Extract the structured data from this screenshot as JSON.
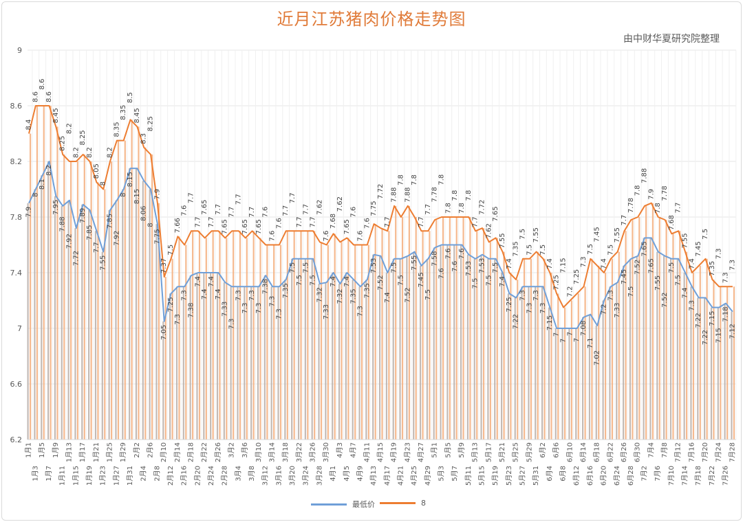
{
  "title": "近月江苏猪肉价格走势图",
  "subtitle": "由中财华夏研究院整理",
  "chart_data": {
    "type": "line",
    "title": "近月江苏猪肉价格走势图",
    "ylim": [
      6.2,
      9
    ],
    "yticks": [
      6.2,
      6.6,
      7,
      7.4,
      7.8,
      8.2,
      8.6,
      9
    ],
    "grid": true,
    "legend_position": "bottom",
    "categories": [
      "1月1",
      "1月3",
      "1月5",
      "1月7",
      "1月9",
      "1月11",
      "1月13",
      "1月15",
      "1月17",
      "1月19",
      "1月21",
      "1月23",
      "1月25",
      "1月27",
      "1月29",
      "1月31",
      "2月2",
      "2月4",
      "2月6",
      "2月8",
      "2月10",
      "2月12",
      "2月14",
      "2月16",
      "2月18",
      "2月20",
      "2月22",
      "2月24",
      "2月26",
      "2月28",
      "3月2",
      "3月4",
      "3月6",
      "3月8",
      "3月10",
      "3月12",
      "3月14",
      "3月16",
      "3月18",
      "3月20",
      "3月22",
      "3月24",
      "3月26",
      "3月28",
      "3月30",
      "4月1",
      "4月3",
      "4月5",
      "4月7",
      "4月9",
      "4月11",
      "4月13",
      "4月15",
      "4月17",
      "4月19",
      "4月21",
      "4月23",
      "4月25",
      "4月27",
      "4月29",
      "5月1",
      "5月3",
      "5月5",
      "5月7",
      "5月9",
      "5月11",
      "5月13",
      "5月15",
      "5月17",
      "5月19",
      "5月21",
      "5月23",
      "5月25",
      "5月27",
      "5月29",
      "5月31",
      "6月2",
      "6月4",
      "6月6",
      "6月8",
      "6月10",
      "6月12",
      "6月14",
      "6月16",
      "6月18",
      "6月20",
      "6月22",
      "6月24",
      "6月26",
      "6月28",
      "6月30",
      "7月2",
      "7月4",
      "7月6",
      "7月8",
      "7月10",
      "7月12",
      "7月14",
      "7月16",
      "7月18",
      "7月20",
      "7月22",
      "7月24",
      "7月26",
      "7月28"
    ],
    "series": [
      {
        "name": "最低价",
        "color": "#6f9fd8",
        "bar_color": "#bcb3ad",
        "values": [
          7.9,
          8.0,
          8.1,
          8.2,
          7.95,
          7.88,
          7.92,
          7.72,
          7.89,
          7.85,
          7.7,
          7.55,
          7.85,
          7.92,
          8.0,
          8.15,
          8.15,
          8.06,
          8.0,
          7.75,
          7.05,
          7.25,
          7.3,
          7.3,
          7.38,
          7.4,
          7.4,
          7.4,
          7.4,
          7.33,
          7.3,
          7.3,
          7.3,
          7.3,
          7.3,
          7.38,
          7.3,
          7.3,
          7.35,
          7.5,
          7.5,
          7.5,
          7.5,
          7.32,
          7.33,
          7.4,
          7.32,
          7.4,
          7.35,
          7.3,
          7.35,
          7.53,
          7.52,
          7.4,
          7.5,
          7.5,
          7.52,
          7.55,
          7.45,
          7.5,
          7.58,
          7.6,
          7.6,
          7.6,
          7.6,
          7.53,
          7.5,
          7.53,
          7.5,
          7.5,
          7.4,
          7.25,
          7.22,
          7.3,
          7.3,
          7.3,
          7.3,
          7.15,
          7.0,
          7.0,
          7.0,
          7.0,
          7.08,
          7.1,
          7.02,
          7.2,
          7.3,
          7.33,
          7.45,
          7.5,
          7.52,
          7.65,
          7.65,
          7.55,
          7.52,
          7.5,
          7.5,
          7.4,
          7.3,
          7.22,
          7.22,
          7.15,
          7.15,
          7.18,
          7.12
        ]
      },
      {
        "name": "8",
        "color": "#ed7d31",
        "bar_color": "#f4b183",
        "values": [
          8.4,
          8.6,
          8.6,
          8.6,
          8.45,
          8.25,
          8.2,
          8.2,
          8.25,
          8.2,
          8.05,
          8.0,
          8.2,
          8.35,
          8.35,
          8.5,
          8.45,
          8.3,
          8.25,
          7.9,
          7.37,
          7.5,
          7.66,
          7.6,
          7.7,
          7.7,
          7.65,
          7.7,
          7.7,
          7.65,
          7.7,
          7.7,
          7.65,
          7.7,
          7.65,
          7.6,
          7.6,
          7.6,
          7.7,
          7.7,
          7.7,
          7.7,
          7.7,
          7.62,
          7.6,
          7.68,
          7.62,
          7.65,
          7.6,
          7.6,
          7.6,
          7.75,
          7.72,
          7.7,
          7.88,
          7.8,
          7.88,
          7.8,
          7.7,
          7.7,
          7.78,
          7.8,
          7.8,
          7.8,
          7.8,
          7.8,
          7.7,
          7.72,
          7.62,
          7.65,
          7.55,
          7.4,
          7.35,
          7.5,
          7.5,
          7.55,
          7.5,
          7.4,
          7.25,
          7.15,
          7.2,
          7.25,
          7.3,
          7.5,
          7.45,
          7.4,
          7.5,
          7.55,
          7.7,
          7.78,
          7.8,
          7.88,
          7.9,
          7.8,
          7.78,
          7.68,
          7.7,
          7.55,
          7.4,
          7.45,
          7.5,
          7.35,
          7.3,
          7.3,
          7.3
        ]
      }
    ]
  },
  "legend": {
    "items": [
      {
        "label": "最低价",
        "color": "#6f9fd8"
      },
      {
        "label": "8",
        "color": "#ed7d31"
      }
    ]
  }
}
